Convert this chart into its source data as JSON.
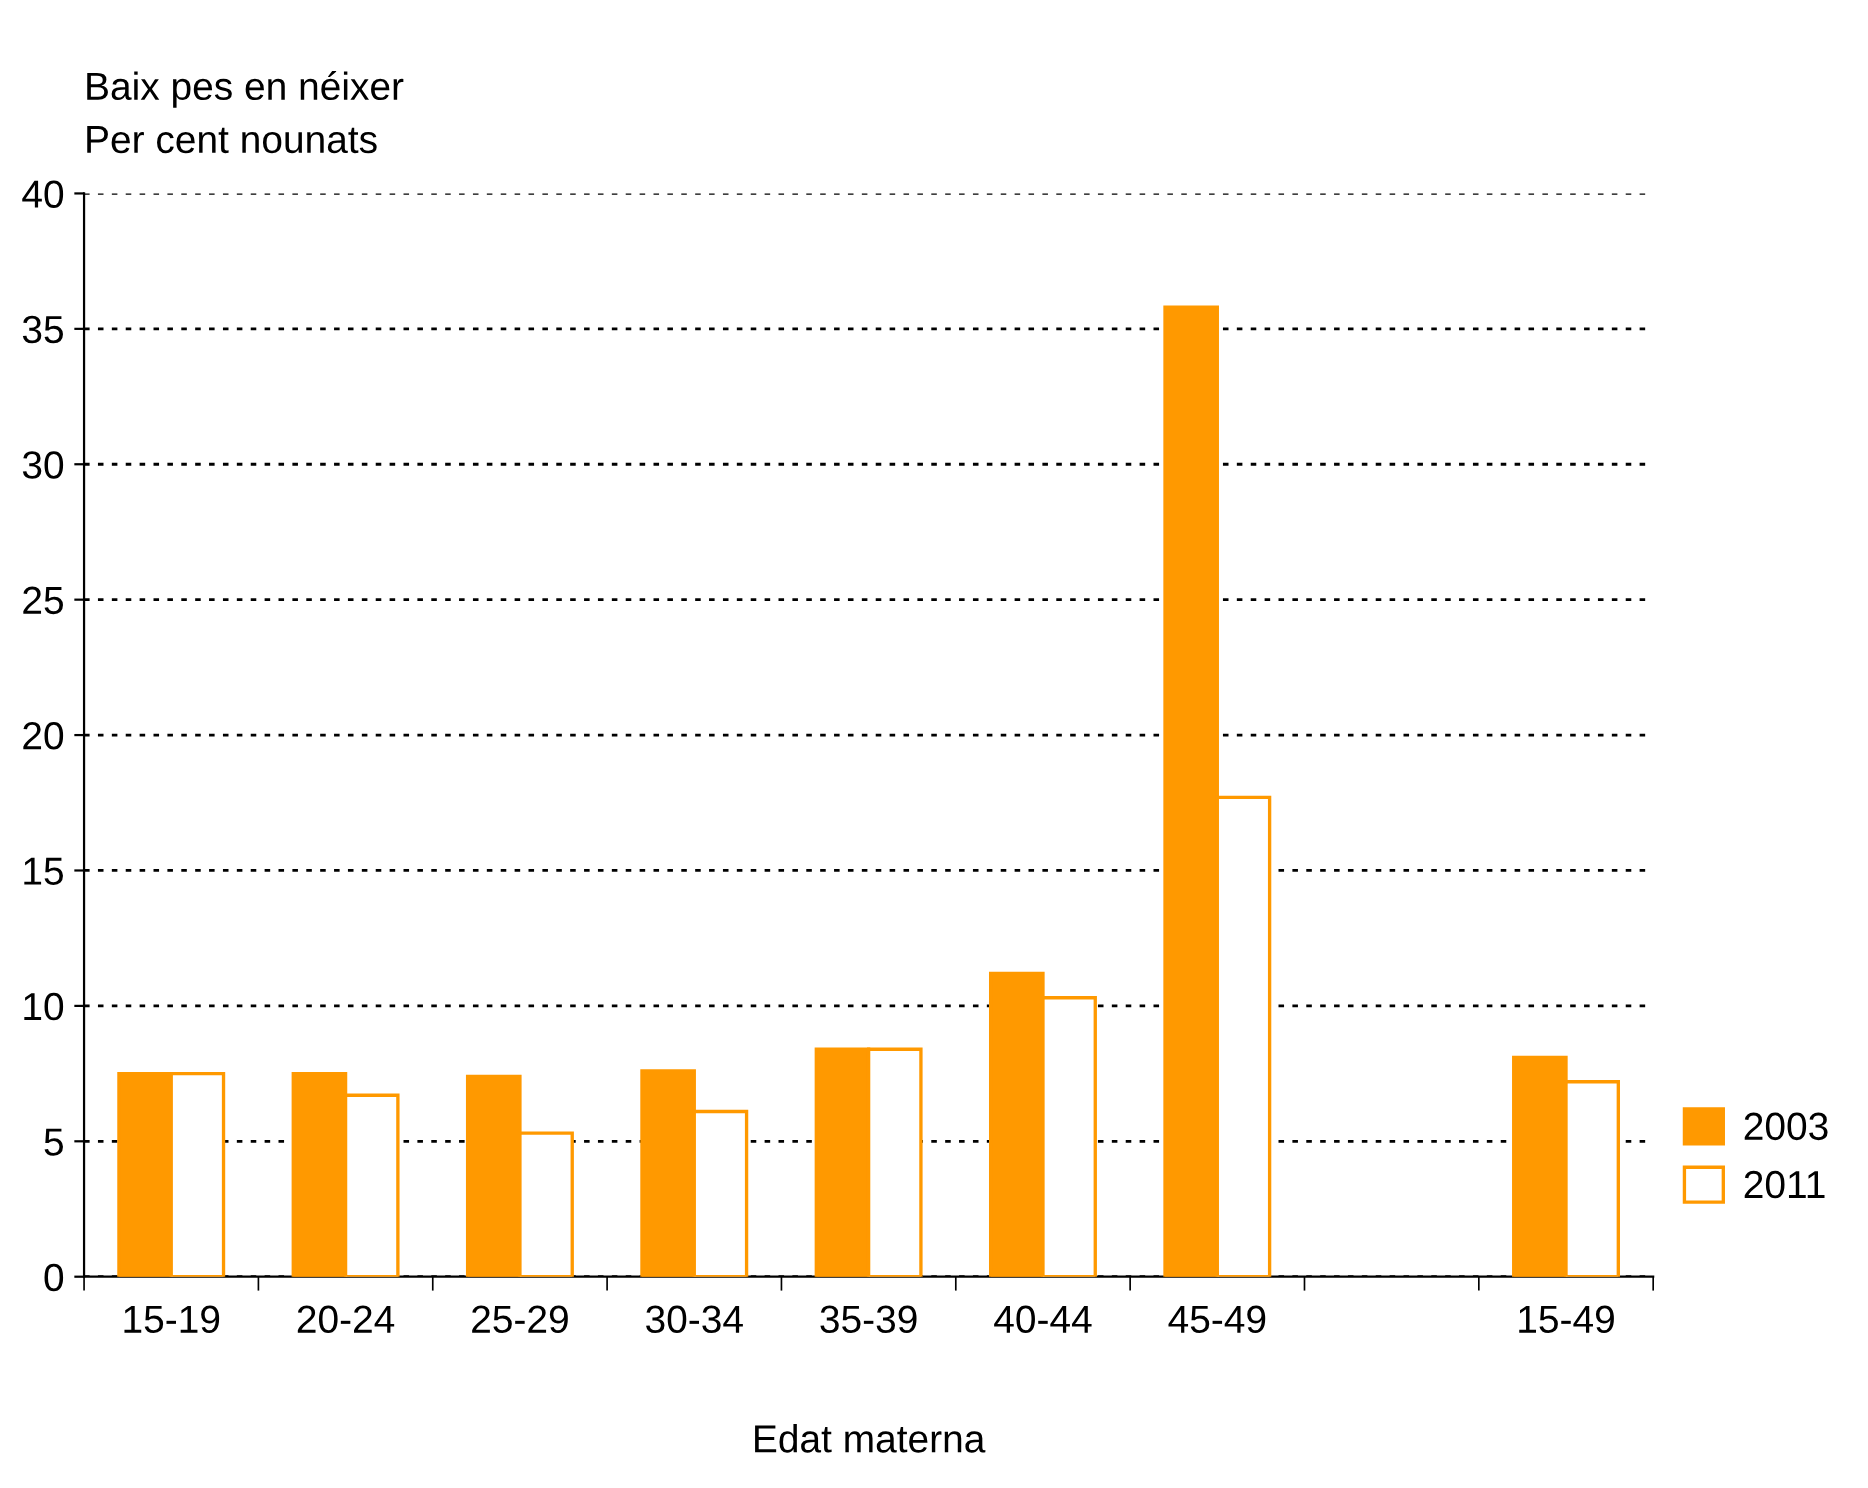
{
  "chart_data": {
    "type": "bar",
    "ylabel": "Baix pes en néixer\nPer cent nounats",
    "xlabel": "Edat materna",
    "categories": [
      "15-19",
      "20-24",
      "25-29",
      "30-34",
      "35-39",
      "40-44",
      "45-49",
      null,
      "15-49"
    ],
    "series": [
      {
        "name": "2003",
        "color": "#ff9900",
        "values": [
          7.5,
          7.5,
          7.4,
          7.6,
          8.4,
          11.2,
          35.8,
          null,
          8.1
        ]
      },
      {
        "name": "2011",
        "color": "#ffffff",
        "values": [
          7.5,
          6.7,
          5.3,
          6.1,
          8.4,
          10.3,
          17.7,
          null,
          7.2
        ]
      }
    ],
    "ylim": [
      0,
      40
    ],
    "yticks": [
      0,
      5,
      10,
      15,
      20,
      25,
      30,
      35,
      40
    ],
    "grid": "y",
    "legend": "right"
  }
}
